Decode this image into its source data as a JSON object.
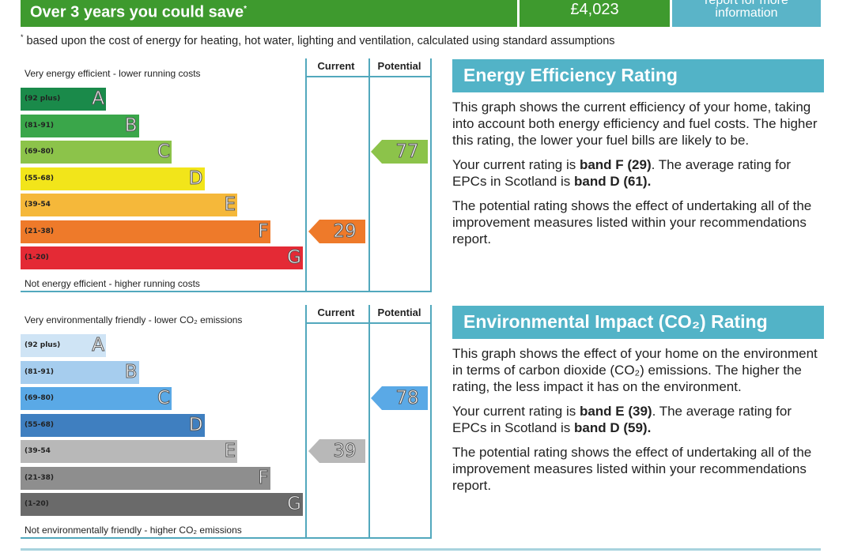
{
  "savings": {
    "label": "Over 3 years you could save",
    "marker": "*",
    "amount": "£4,023",
    "info_line1": "report for more",
    "info_line2": "information",
    "footnote_marker": "*",
    "footnote": " based upon the cost of energy for heating, hot water, lighting and ventilation, calculated using standard assumptions"
  },
  "energy": {
    "col_current": "Current",
    "col_potential": "Potential",
    "top_text": "Very energy efficient - lower running costs",
    "bottom_text": "Not energy efficient - higher running costs",
    "bands": [
      {
        "range": "(92 plus)",
        "letter": "A",
        "color": "#1a8a4a"
      },
      {
        "range": "(81-91)",
        "letter": "B",
        "color": "#3aa64a"
      },
      {
        "range": "(69-80)",
        "letter": "C",
        "color": "#8cc34a"
      },
      {
        "range": "(55-68)",
        "letter": "D",
        "color": "#f2e51a"
      },
      {
        "range": "(39-54",
        "letter": "E",
        "color": "#f5b83a"
      },
      {
        "range": "(21-38)",
        "letter": "F",
        "color": "#ee7a2a"
      },
      {
        "range": "(1-20)",
        "letter": "G",
        "color": "#e42a35"
      }
    ],
    "current": {
      "value": "29",
      "band_index": 5,
      "color": "#ee7a2a"
    },
    "potential": {
      "value": "77",
      "band_index": 2,
      "color": "#8cc34a"
    },
    "heading": "Energy Efficiency Rating",
    "p1": "This graph shows the current efficiency of your home, taking into account both energy efficiency and fuel costs. The higher this rating, the lower your fuel bills are likely to be.",
    "p2_a": "Your current rating is ",
    "p2_b": "band F (29)",
    "p2_c": ". The average rating for EPCs in Scotland is ",
    "p2_d": "band D (61).",
    "p3": "The potential rating shows the effect of undertaking all of the improvement measures listed within your recommendations report."
  },
  "environment": {
    "col_current": "Current",
    "col_potential": "Potential",
    "top_text": "Very environmentally friendly - lower CO₂ emissions",
    "bottom_text": "Not environmentally friendly - higher CO₂ emissions",
    "bands": [
      {
        "range": "(92 plus)",
        "letter": "A",
        "color": "#cfe4f5"
      },
      {
        "range": "(81-91)",
        "letter": "B",
        "color": "#a6cdee"
      },
      {
        "range": "(69-80)",
        "letter": "C",
        "color": "#5aa9e6"
      },
      {
        "range": "(55-68)",
        "letter": "D",
        "color": "#3f7fc0"
      },
      {
        "range": "(39-54",
        "letter": "E",
        "color": "#b8b8b8"
      },
      {
        "range": "(21-38)",
        "letter": "F",
        "color": "#8e8e8e"
      },
      {
        "range": "(1-20)",
        "letter": "G",
        "color": "#6a6a6a"
      }
    ],
    "current": {
      "value": "39",
      "band_index": 4,
      "color": "#b8b8b8"
    },
    "potential": {
      "value": "78",
      "band_index": 2,
      "color": "#5aa9e6"
    },
    "heading": "Environmental Impact (CO₂) Rating",
    "p1": "This graph shows the effect of your home on the environment in terms of carbon dioxide (CO₂) emissions. The higher the rating, the less impact it has on the environment.",
    "p2_a": "Your current rating is ",
    "p2_b": "band E (39)",
    "p2_c": ". The average rating for EPCs in Scotland is ",
    "p2_d": "band D (59).",
    "p3": "The potential rating shows the effect of undertaking all of the improvement measures listed within your recommendations report."
  }
}
